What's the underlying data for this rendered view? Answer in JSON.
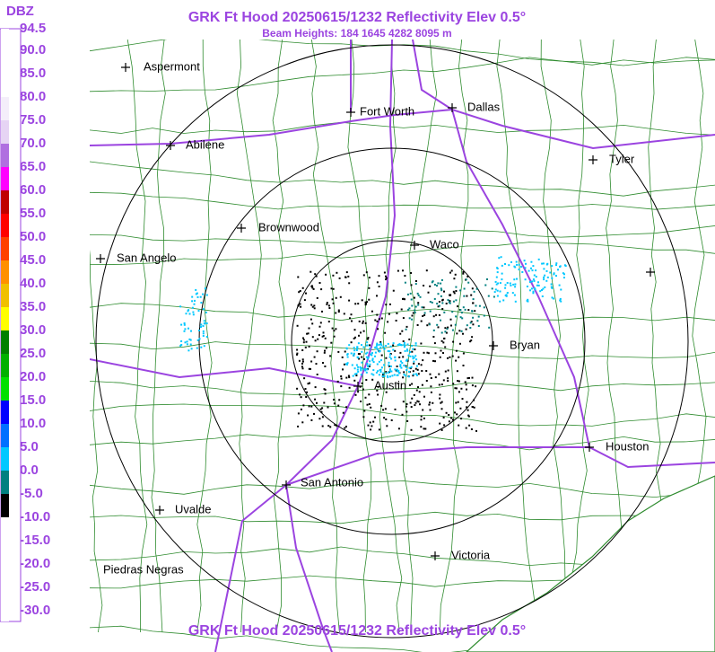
{
  "header": {
    "title": "GRK Ft Hood 20250615/1232 Reflectivity Elev 0.5°",
    "subtitle": "Beam Heights: 184 1645 4282 8095 m"
  },
  "legend": {
    "unit": "DBZ",
    "labels": [
      "94.5",
      "90.0",
      "85.0",
      "80.0",
      "75.0",
      "70.0",
      "65.0",
      "60.0",
      "55.0",
      "50.0",
      "45.0",
      "40.0",
      "35.0",
      "30.0",
      "25.0",
      "20.0",
      "15.0",
      "10.0",
      "5.0",
      "0.0",
      "-5.0",
      "-10.0",
      "-15.0",
      "-20.0",
      "-25.0",
      "-30.0"
    ],
    "colors": [
      "#ffffff",
      "#ffffff",
      "#ffffff",
      "#f4eefa",
      "#e6d4f4",
      "#b070e0",
      "#ff00ff",
      "#c00000",
      "#ff0000",
      "#ff4000",
      "#ff9000",
      "#f0c000",
      "#ffff00",
      "#008000",
      "#00b000",
      "#00e000",
      "#0000ff",
      "#0070ff",
      "#00c8ff",
      "#008080",
      "#000000",
      "#ffffff",
      "#ffffff",
      "#ffffff",
      "#ffffff",
      "#ffffff"
    ]
  },
  "cities": [
    {
      "name": "Aspermont"
    },
    {
      "name": "Abilene"
    },
    {
      "name": "Fort Worth"
    },
    {
      "name": "Dallas"
    },
    {
      "name": "Tyler"
    },
    {
      "name": "Brownwood"
    },
    {
      "name": "Waco"
    },
    {
      "name": "San Angelo"
    },
    {
      "name": "Bryan"
    },
    {
      "name": "Austin"
    },
    {
      "name": "Houston"
    },
    {
      "name": "San Antonio"
    },
    {
      "name": "Uvalde"
    },
    {
      "name": "Victoria"
    },
    {
      "name": "Piedras Negras"
    }
  ],
  "footer": {
    "title": "GRK Ft Hood 20250615/1232 Reflectivity Elev 0.5°"
  }
}
